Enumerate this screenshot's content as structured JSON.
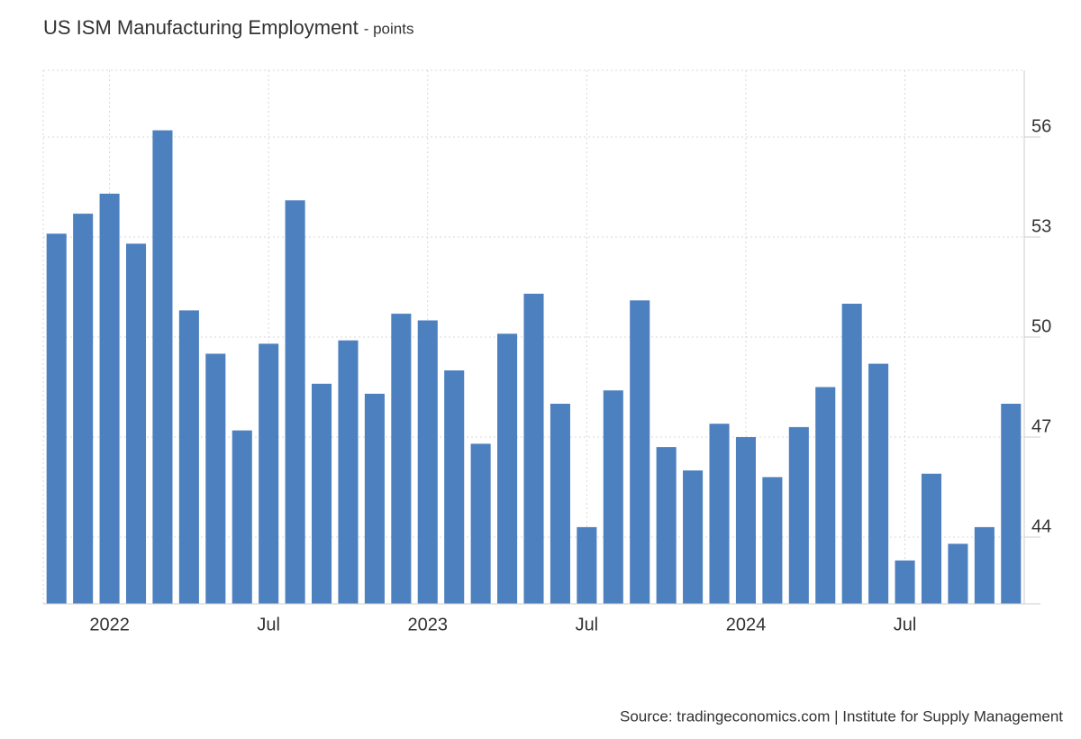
{
  "chart_data": {
    "type": "bar",
    "title": "US ISM Manufacturing Employment",
    "subtitle": "- points",
    "source": "Source: tradingeconomics.com | Institute for Supply Management",
    "categories": [
      null,
      null,
      "2022",
      null,
      null,
      null,
      null,
      null,
      "Jul",
      null,
      null,
      null,
      null,
      null,
      "2023",
      null,
      null,
      null,
      null,
      null,
      "Jul",
      null,
      null,
      null,
      null,
      null,
      "2024",
      null,
      null,
      null,
      null,
      null,
      "Jul",
      null,
      null,
      null,
      null
    ],
    "values": [
      53.1,
      53.7,
      54.3,
      52.8,
      56.2,
      50.8,
      49.5,
      47.2,
      49.8,
      54.1,
      48.6,
      49.9,
      48.3,
      50.7,
      50.5,
      49.0,
      46.8,
      50.1,
      51.3,
      48.0,
      44.3,
      48.4,
      51.1,
      46.7,
      46.0,
      47.4,
      47.0,
      45.8,
      47.3,
      48.5,
      51.0,
      49.2,
      43.3,
      45.9,
      43.8,
      44.3,
      48.0
    ],
    "color": "#4d80bf",
    "ylim": [
      42,
      58
    ],
    "yticks": [
      44,
      47,
      50,
      53,
      56
    ],
    "grid": true
  }
}
